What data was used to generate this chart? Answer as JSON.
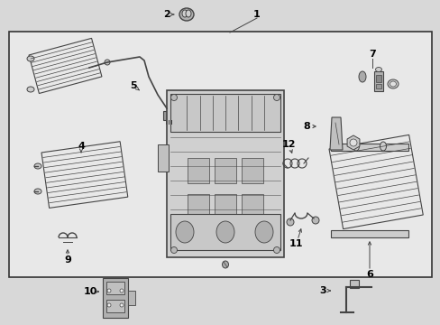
{
  "bg_color": "#f0f0f0",
  "border_color": "#000000",
  "line_color": "#222222",
  "text_color": "#000000",
  "fig_width": 4.89,
  "fig_height": 3.6,
  "dpi": 100,
  "part_gray": "#444444",
  "light_gray": "#aaaaaa",
  "fill_gray": "#cccccc",
  "dark_fill": "#888888"
}
